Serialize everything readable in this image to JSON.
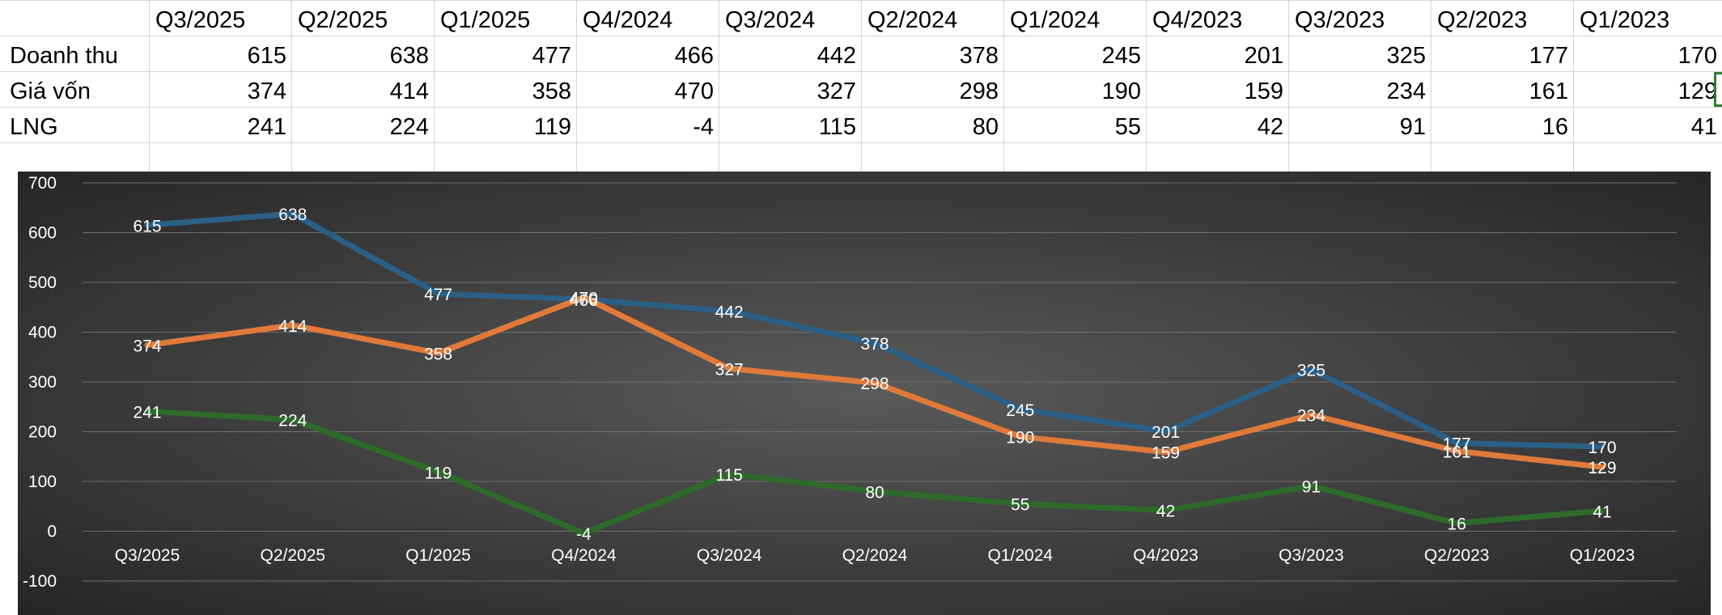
{
  "spreadsheet": {
    "columns": [
      "Q3/2025",
      "Q2/2025",
      "Q1/2025",
      "Q4/2024",
      "Q3/2024",
      "Q2/2024",
      "Q1/2024",
      "Q4/2023",
      "Q3/2023",
      "Q2/2023",
      "Q1/2023"
    ],
    "rows": [
      {
        "label": "Doanh thu",
        "values": [
          "615",
          "638",
          "477",
          "466",
          "442",
          "378",
          "245",
          "201",
          "325",
          "177",
          "170"
        ]
      },
      {
        "label": "Giá vốn",
        "values": [
          "374",
          "414",
          "358",
          "470",
          "327",
          "298",
          "190",
          "159",
          "234",
          "161",
          "129"
        ]
      },
      {
        "label": "LNG",
        "values": [
          "241",
          "224",
          "119",
          "-4",
          "115",
          "80",
          "55",
          "42",
          "91",
          "16",
          "41"
        ]
      }
    ]
  },
  "chart_data": {
    "type": "line",
    "title": "",
    "xlabel": "",
    "ylabel": "",
    "categories": [
      "Q3/2025",
      "Q2/2025",
      "Q1/2025",
      "Q4/2024",
      "Q3/2024",
      "Q2/2024",
      "Q1/2024",
      "Q4/2023",
      "Q3/2023",
      "Q2/2023",
      "Q1/2023"
    ],
    "series": [
      {
        "name": "Doanh thu",
        "color": "#2b5f86",
        "values": [
          615,
          638,
          477,
          466,
          442,
          378,
          245,
          201,
          325,
          177,
          170
        ]
      },
      {
        "name": "Giá vốn",
        "color": "#e0793a",
        "values": [
          374,
          414,
          358,
          470,
          327,
          298,
          190,
          159,
          234,
          161,
          129
        ]
      },
      {
        "name": "LNG",
        "color": "#2e6b2a",
        "values": [
          241,
          224,
          119,
          -4,
          115,
          80,
          55,
          42,
          91,
          16,
          41
        ]
      }
    ],
    "yticks": [
      700,
      600,
      500,
      400,
      300,
      200,
      100,
      0,
      -100
    ],
    "ylim": [
      -100,
      700
    ],
    "grid": true,
    "legend": "none"
  }
}
